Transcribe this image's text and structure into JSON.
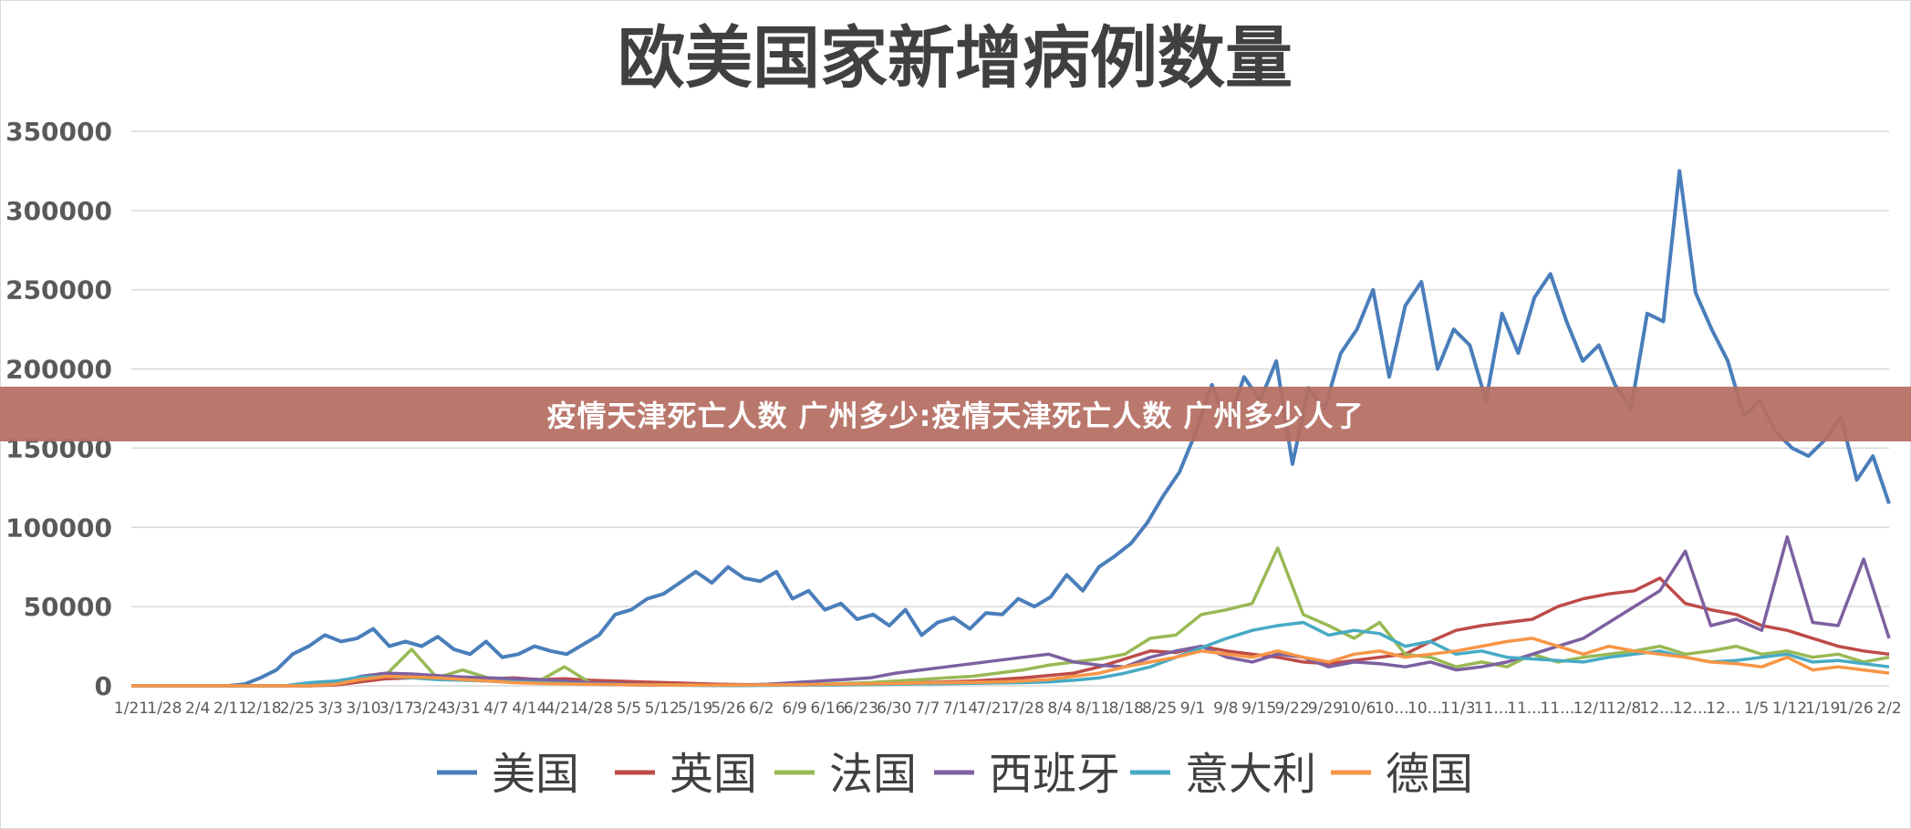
{
  "banner": {
    "text": "疫情天津死亡人数 广州多少:疫情天津死亡人数 广州多少人了"
  },
  "colors": {
    "美国": "#4a7ebb",
    "英国": "#be4b48",
    "法国": "#98b954",
    "西班牙": "#7d60a0",
    "意大利": "#46aac4",
    "德国": "#f79646",
    "grid": "#d9d9d9",
    "axis_text": "#595959"
  },
  "chart_data": {
    "type": "line",
    "title": "欧美国家新增病例数量",
    "xlabel": "",
    "ylabel": "",
    "ylim": [
      0,
      350000
    ],
    "yticks": [
      0,
      50000,
      100000,
      150000,
      200000,
      250000,
      300000,
      350000
    ],
    "xtick_labels": [
      "1/21",
      "1/28",
      "2/4",
      "2/11",
      "2/18",
      "2/25",
      "3/3",
      "3/10",
      "3/17",
      "3/24",
      "3/31",
      "4/7",
      "4/14",
      "4/21",
      "4/28",
      "5/5",
      "5/12",
      "5/19",
      "5/26",
      "6/2",
      "6/9",
      "6/16",
      "6/23",
      "6/30",
      "7/7",
      "7/14",
      "7/21",
      "7/28",
      "8/4",
      "8/11",
      "8/18",
      "8/25",
      "9/1",
      "9/8",
      "9/15",
      "9/22",
      "9/29",
      "10/6",
      "10...",
      "10...",
      "11/3",
      "11...",
      "11...",
      "11...",
      "12/1",
      "12/8",
      "12...",
      "12...",
      "12...",
      "1/5",
      "1/12",
      "1/19",
      "1/26",
      "2/2"
    ],
    "grid": true,
    "legend_position": "bottom",
    "series": [
      {
        "name": "美国",
        "values": [
          0,
          0,
          0,
          0,
          0,
          0,
          0,
          1000,
          5000,
          10000,
          20000,
          25000,
          32000,
          28000,
          30000,
          36000,
          25000,
          28000,
          25000,
          31000,
          23000,
          20000,
          28000,
          18000,
          20000,
          25000,
          22000,
          20000,
          26000,
          32000,
          45000,
          48000,
          55000,
          58000,
          65000,
          72000,
          65000,
          75000,
          68000,
          66000,
          72000,
          55000,
          60000,
          48000,
          52000,
          42000,
          45000,
          38000,
          48000,
          32000,
          40000,
          43000,
          36000,
          46000,
          45000,
          55000,
          50000,
          56000,
          70000,
          60000,
          75000,
          82000,
          90000,
          103000,
          120000,
          135000,
          160000,
          190000,
          165000,
          195000,
          180000,
          205000,
          140000,
          188000,
          175000,
          210000,
          225000,
          250000,
          195000,
          240000,
          255000,
          200000,
          225000,
          215000,
          180000,
          235000,
          210000,
          245000,
          260000,
          230000,
          205000,
          215000,
          190000,
          175000,
          235000,
          230000,
          325000,
          248000,
          225000,
          205000,
          170000,
          180000,
          160000,
          150000,
          145000,
          155000,
          170000,
          130000,
          145000,
          115000
        ]
      },
      {
        "name": "英国",
        "values": [
          0,
          0,
          0,
          0,
          0,
          0,
          0,
          0,
          500,
          2500,
          4500,
          5000,
          5500,
          5000,
          4500,
          5000,
          4000,
          4500,
          3500,
          3000,
          2500,
          2000,
          1500,
          1000,
          800,
          700,
          800,
          900,
          1000,
          1200,
          1500,
          2000,
          2500,
          3000,
          4000,
          5000,
          6500,
          8000,
          12000,
          17000,
          22000,
          21000,
          25000,
          22000,
          20000,
          18000,
          15000,
          14000,
          16000,
          18000,
          20000,
          28000,
          35000,
          38000,
          40000,
          42000,
          50000,
          55000,
          58000,
          60000,
          68000,
          52000,
          48000,
          45000,
          38000,
          35000,
          30000,
          25000,
          22000,
          20000
        ]
      },
      {
        "name": "法国",
        "values": [
          0,
          0,
          0,
          0,
          0,
          0,
          0,
          0,
          1000,
          4000,
          7000,
          23000,
          5000,
          10000,
          5000,
          4000,
          3000,
          12000,
          2000,
          1000,
          800,
          700,
          500,
          400,
          500,
          600,
          800,
          1000,
          1500,
          2000,
          3000,
          4000,
          5000,
          6000,
          8000,
          10000,
          13000,
          15000,
          17000,
          20000,
          30000,
          32000,
          45000,
          48000,
          52000,
          87000,
          45000,
          38000,
          30000,
          40000,
          20000,
          18000,
          12000,
          15000,
          12000,
          20000,
          15000,
          18000,
          20000,
          22000,
          25000,
          20000,
          22000,
          25000,
          20000,
          22000,
          18000,
          20000,
          15000,
          18000
        ]
      },
      {
        "name": "西班牙",
        "values": [
          0,
          0,
          0,
          0,
          0,
          0,
          0,
          0,
          1000,
          6000,
          8000,
          7500,
          6500,
          5500,
          5000,
          4500,
          4000,
          3000,
          2000,
          1500,
          800,
          500,
          400,
          300,
          500,
          1000,
          2000,
          3000,
          4000,
          5000,
          8000,
          10000,
          12000,
          14000,
          16000,
          18000,
          20000,
          15000,
          13000,
          12000,
          18000,
          22000,
          25000,
          18000,
          15000,
          20000,
          18000,
          12000,
          15000,
          14000,
          12000,
          15000,
          10000,
          12000,
          15000,
          20000,
          25000,
          30000,
          40000,
          50000,
          60000,
          85000,
          38000,
          42000,
          35000,
          94000,
          40000,
          38000,
          80000,
          30000
        ]
      },
      {
        "name": "意大利",
        "values": [
          0,
          0,
          0,
          0,
          0,
          0,
          0,
          2000,
          3000,
          5500,
          6000,
          5000,
          4000,
          3500,
          3000,
          2500,
          2000,
          1500,
          1000,
          800,
          500,
          400,
          300,
          250,
          200,
          300,
          400,
          500,
          600,
          800,
          1000,
          1200,
          1400,
          1600,
          1800,
          2000,
          2500,
          3500,
          5000,
          8000,
          12000,
          18000,
          24000,
          30000,
          35000,
          38000,
          40000,
          32000,
          35000,
          33000,
          25000,
          28000,
          20000,
          22000,
          18000,
          17000,
          16000,
          15000,
          18000,
          20000,
          22000,
          18000,
          15000,
          16000,
          18000,
          20000,
          15000,
          16000,
          14000,
          12000
        ]
      },
      {
        "name": "德国",
        "values": [
          0,
          0,
          0,
          0,
          0,
          0,
          0,
          0,
          1000,
          4000,
          6000,
          5500,
          5000,
          4000,
          3000,
          2000,
          1500,
          1200,
          1000,
          800,
          600,
          500,
          400,
          400,
          500,
          600,
          700,
          900,
          1100,
          1300,
          1500,
          1800,
          2000,
          2200,
          2500,
          3000,
          4000,
          6000,
          8000,
          12000,
          15000,
          18000,
          22000,
          20000,
          18000,
          22000,
          18000,
          15000,
          20000,
          22000,
          18000,
          20000,
          22000,
          25000,
          28000,
          30000,
          25000,
          20000,
          25000,
          22000,
          20000,
          18000,
          15000,
          14000,
          12000,
          18000,
          10000,
          12000,
          10000,
          8000
        ]
      }
    ]
  }
}
